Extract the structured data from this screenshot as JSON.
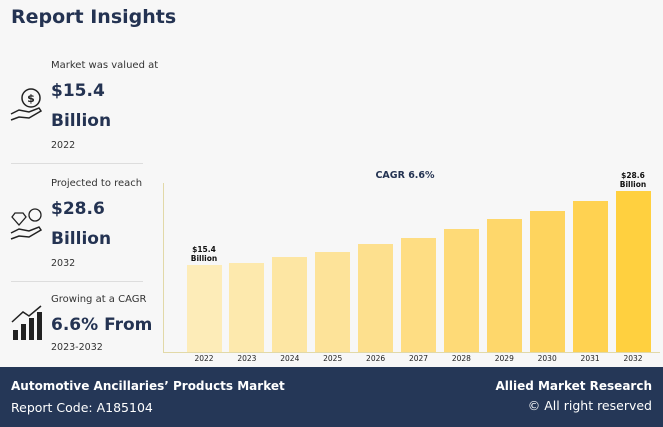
{
  "header": {
    "title": "Report Insights"
  },
  "stats": [
    {
      "caption": "Market was valued at",
      "value": "$15.4\nBillion",
      "year": "2022"
    },
    {
      "caption": "Projected to reach",
      "value": "$28.6\nBillion",
      "year": "2032"
    },
    {
      "caption": "Growing at a CAGR",
      "value": "6.6% From",
      "year": "2023-2032"
    }
  ],
  "chart_data": {
    "type": "bar",
    "annotation": "CAGR 6.6%",
    "categories": [
      "2022",
      "2023",
      "2024",
      "2025",
      "2026",
      "2027",
      "2028",
      "2029",
      "2030",
      "2031",
      "2032"
    ],
    "values": [
      15.4,
      15.9,
      16.8,
      17.7,
      19.1,
      20.3,
      21.9,
      23.7,
      25.1,
      26.9,
      28.6
    ],
    "value_labels": [
      "$15.4\nBillion",
      null,
      null,
      null,
      null,
      null,
      null,
      null,
      null,
      null,
      "$28.6\nBillion"
    ],
    "colors": [
      "#fdecb8",
      "#fde9ad",
      "#fde6a3",
      "#fde399",
      "#fde08e",
      "#fedd83",
      "#feda77",
      "#fed76b",
      "#fed45e",
      "#ffd251",
      "#ffd03f"
    ]
  },
  "footer": {
    "report_name": "Automotive Ancillaries’ Products Market",
    "report_code": "Report Code: A185104",
    "brand": "Allied Market Research",
    "rights": "© All right reserved"
  }
}
